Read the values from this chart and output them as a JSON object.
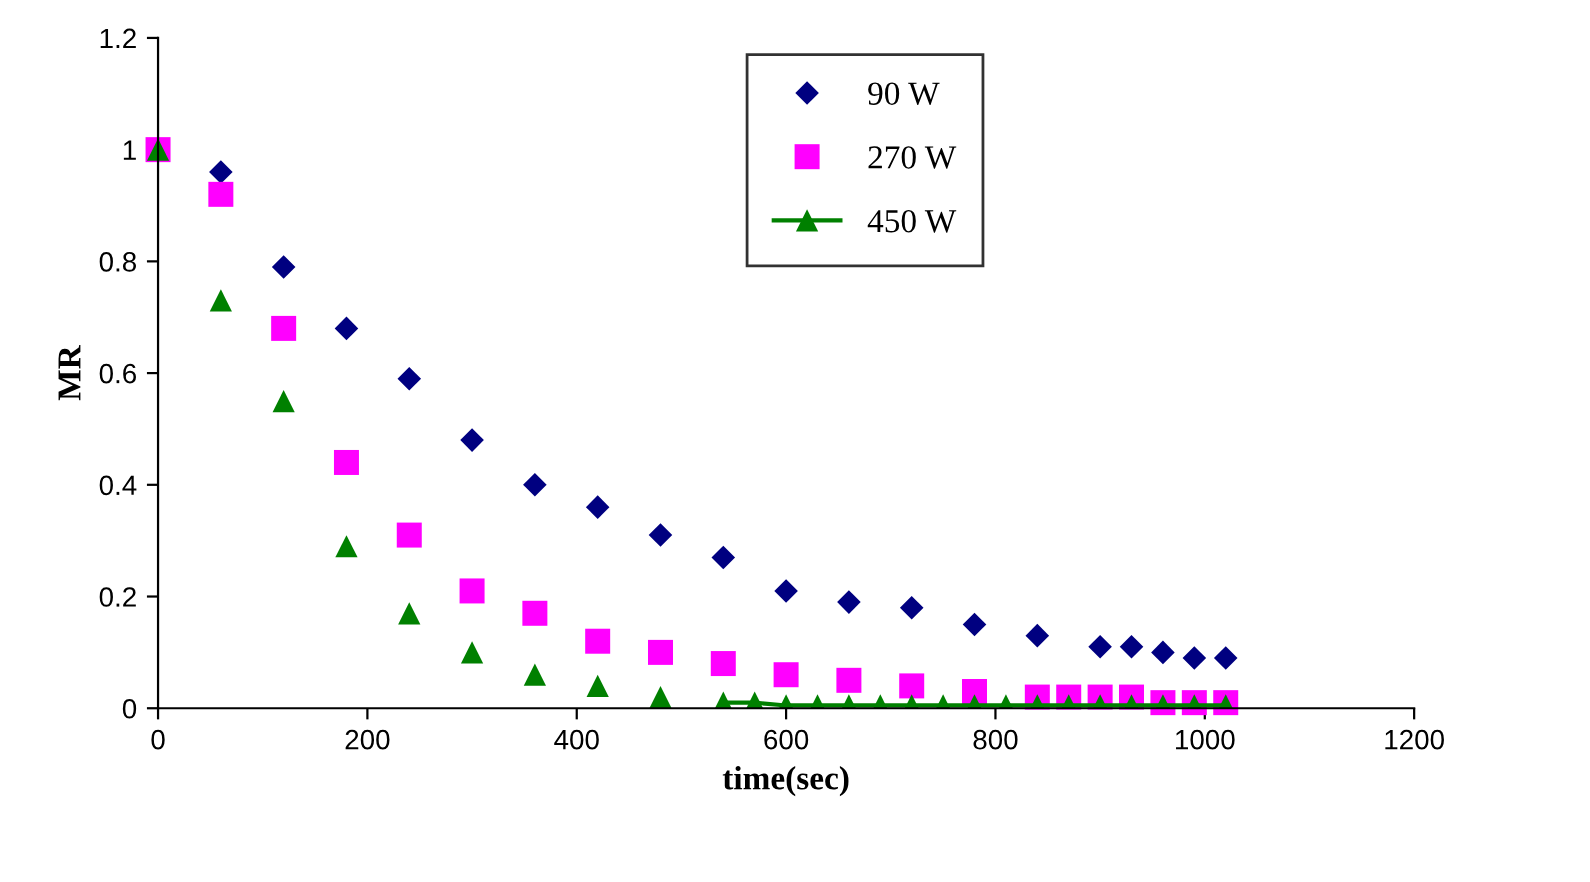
{
  "chart_data": {
    "type": "scatter",
    "xlabel": "time(sec)",
    "ylabel": "MR",
    "xlim": [
      0,
      1200
    ],
    "xticks": [
      0,
      200,
      400,
      600,
      800,
      1000,
      1200
    ],
    "ylim": [
      0,
      1.2
    ],
    "yticks": [
      0,
      0.2,
      0.4,
      0.6,
      0.8,
      1,
      1.2
    ],
    "grid": false,
    "legend": "top right",
    "series": [
      {
        "name": "90 W",
        "color": "#000080",
        "marker": "diamond",
        "x": [
          60,
          120,
          180,
          240,
          300,
          360,
          420,
          480,
          540,
          600,
          660,
          720,
          780,
          840,
          900,
          930,
          960,
          990,
          1020
        ],
        "values": [
          0.96,
          0.79,
          0.68,
          0.59,
          0.48,
          0.4,
          0.36,
          0.31,
          0.27,
          0.21,
          0.19,
          0.18,
          0.15,
          0.13,
          0.11,
          0.11,
          0.1,
          0.09,
          0.09
        ]
      },
      {
        "name": "270 W",
        "color": "#ff00ff",
        "marker": "square",
        "x": [
          0,
          60,
          120,
          180,
          240,
          300,
          360,
          420,
          480,
          540,
          600,
          660,
          720,
          780,
          840,
          870,
          900,
          930,
          960,
          990,
          1020
        ],
        "values": [
          1.0,
          0.92,
          0.68,
          0.44,
          0.31,
          0.21,
          0.17,
          0.12,
          0.1,
          0.08,
          0.06,
          0.05,
          0.04,
          0.03,
          0.02,
          0.02,
          0.02,
          0.02,
          0.01,
          0.01,
          0.01
        ]
      },
      {
        "color": "#008000",
        "marker": "triangle",
        "x": [
          0,
          60,
          120,
          180,
          240,
          300,
          360,
          420,
          480
        ],
        "values": [
          1.0,
          0.73,
          0.55,
          0.29,
          0.17,
          0.1,
          0.06,
          0.04,
          0.02
        ]
      },
      {
        "name": "450 W",
        "type": "line",
        "color": "#008000",
        "marker": "triangle",
        "line_style": "solid",
        "x": [
          540,
          570,
          600,
          630,
          660,
          690,
          720,
          750,
          780,
          810,
          840,
          870,
          900,
          930,
          960,
          990,
          1020
        ],
        "values": [
          0.01,
          0.01,
          0.005,
          0.005,
          0.005,
          0.005,
          0.005,
          0.005,
          0.005,
          0.005,
          0.005,
          0.005,
          0.005,
          0.005,
          0.005,
          0.005,
          0.005
        ]
      }
    ]
  }
}
